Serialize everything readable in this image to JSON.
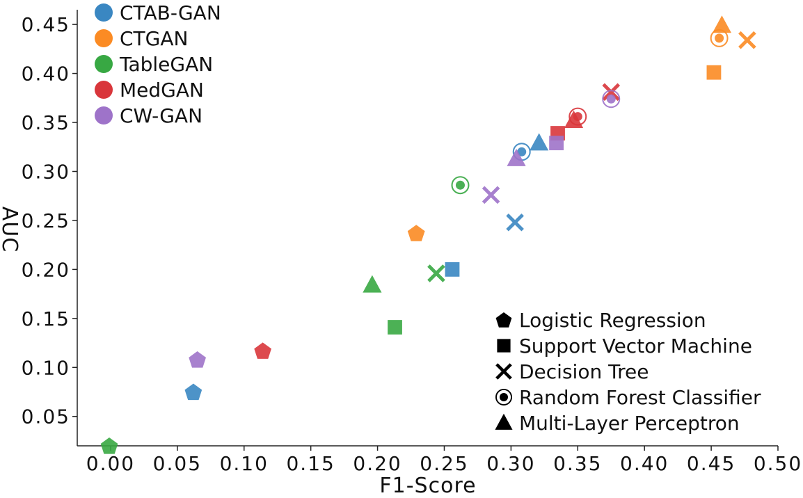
{
  "chart_data": {
    "type": "scatter",
    "xlabel": "F1-Score",
    "ylabel": "AUC",
    "xlim": [
      -0.025,
      0.5
    ],
    "ylim": [
      0.02,
      0.465
    ],
    "x_ticks": [
      0.0,
      0.05,
      0.1,
      0.15,
      0.2,
      0.25,
      0.3,
      0.35,
      0.4,
      0.45,
      0.5
    ],
    "x_tick_labels": [
      "0.00",
      "0.05",
      "0.10",
      "0.15",
      "0.20",
      "0.25",
      "0.30",
      "0.35",
      "0.40",
      "0.45",
      "0.50"
    ],
    "y_ticks": [
      0.05,
      0.1,
      0.15,
      0.2,
      0.25,
      0.3,
      0.35,
      0.4,
      0.45
    ],
    "y_tick_labels": [
      "0.05",
      "0.10",
      "0.15",
      "0.20",
      "0.25",
      "0.30",
      "0.35",
      "0.40",
      "0.45"
    ],
    "grid": false,
    "legend_models_position": "top-left",
    "legend_classifiers_position": "bottom-right",
    "models": [
      {
        "name": "CTAB-GAN",
        "color": "#3a87c2"
      },
      {
        "name": "CTGAN",
        "color": "#fb8b24"
      },
      {
        "name": "TableGAN",
        "color": "#38a843"
      },
      {
        "name": "MedGAN",
        "color": "#d9363b"
      },
      {
        "name": "CW-GAN",
        "color": "#9e73c9"
      }
    ],
    "classifiers": [
      {
        "name": "Logistic Regression",
        "marker": "pentagon"
      },
      {
        "name": "Support Vector Machine",
        "marker": "square"
      },
      {
        "name": "Decision Tree",
        "marker": "x"
      },
      {
        "name": "Random Forest Classifier",
        "marker": "ring"
      },
      {
        "name": "Multi-Layer Perceptron",
        "marker": "triangle"
      }
    ],
    "points": [
      {
        "model": "CTAB-GAN",
        "classifier": "Logistic Regression",
        "x": 0.062,
        "y": 0.075
      },
      {
        "model": "CTAB-GAN",
        "classifier": "Support Vector Machine",
        "x": 0.256,
        "y": 0.2
      },
      {
        "model": "CTAB-GAN",
        "classifier": "Decision Tree",
        "x": 0.303,
        "y": 0.248
      },
      {
        "model": "CTAB-GAN",
        "classifier": "Random Forest Classifier",
        "x": 0.308,
        "y": 0.32
      },
      {
        "model": "CTAB-GAN",
        "classifier": "Multi-Layer Perceptron",
        "x": 0.321,
        "y": 0.329
      },
      {
        "model": "CTGAN",
        "classifier": "Logistic Regression",
        "x": 0.229,
        "y": 0.237
      },
      {
        "model": "CTGAN",
        "classifier": "Support Vector Machine",
        "x": 0.452,
        "y": 0.401
      },
      {
        "model": "CTGAN",
        "classifier": "Decision Tree",
        "x": 0.477,
        "y": 0.434
      },
      {
        "model": "CTGAN",
        "classifier": "Random Forest Classifier",
        "x": 0.456,
        "y": 0.436
      },
      {
        "model": "CTGAN",
        "classifier": "Multi-Layer Perceptron",
        "x": 0.458,
        "y": 0.449
      },
      {
        "model": "TableGAN",
        "classifier": "Logistic Regression",
        "x": -0.001,
        "y": 0.02
      },
      {
        "model": "TableGAN",
        "classifier": "Support Vector Machine",
        "x": 0.213,
        "y": 0.141
      },
      {
        "model": "TableGAN",
        "classifier": "Decision Tree",
        "x": 0.244,
        "y": 0.196
      },
      {
        "model": "TableGAN",
        "classifier": "Random Forest Classifier",
        "x": 0.262,
        "y": 0.286
      },
      {
        "model": "TableGAN",
        "classifier": "Multi-Layer Perceptron",
        "x": 0.196,
        "y": 0.184
      },
      {
        "model": "MedGAN",
        "classifier": "Logistic Regression",
        "x": 0.114,
        "y": 0.117
      },
      {
        "model": "MedGAN",
        "classifier": "Support Vector Machine",
        "x": 0.335,
        "y": 0.339
      },
      {
        "model": "MedGAN",
        "classifier": "Decision Tree",
        "x": 0.375,
        "y": 0.381
      },
      {
        "model": "MedGAN",
        "classifier": "Random Forest Classifier",
        "x": 0.35,
        "y": 0.356
      },
      {
        "model": "MedGAN",
        "classifier": "Multi-Layer Perceptron",
        "x": 0.347,
        "y": 0.352
      },
      {
        "model": "CW-GAN",
        "classifier": "Logistic Regression",
        "x": 0.065,
        "y": 0.108
      },
      {
        "model": "CW-GAN",
        "classifier": "Support Vector Machine",
        "x": 0.334,
        "y": 0.329
      },
      {
        "model": "CW-GAN",
        "classifier": "Decision Tree",
        "x": 0.285,
        "y": 0.276
      },
      {
        "model": "CW-GAN",
        "classifier": "Random Forest Classifier",
        "x": 0.375,
        "y": 0.374
      },
      {
        "model": "CW-GAN",
        "classifier": "Multi-Layer Perceptron",
        "x": 0.304,
        "y": 0.313
      }
    ]
  }
}
